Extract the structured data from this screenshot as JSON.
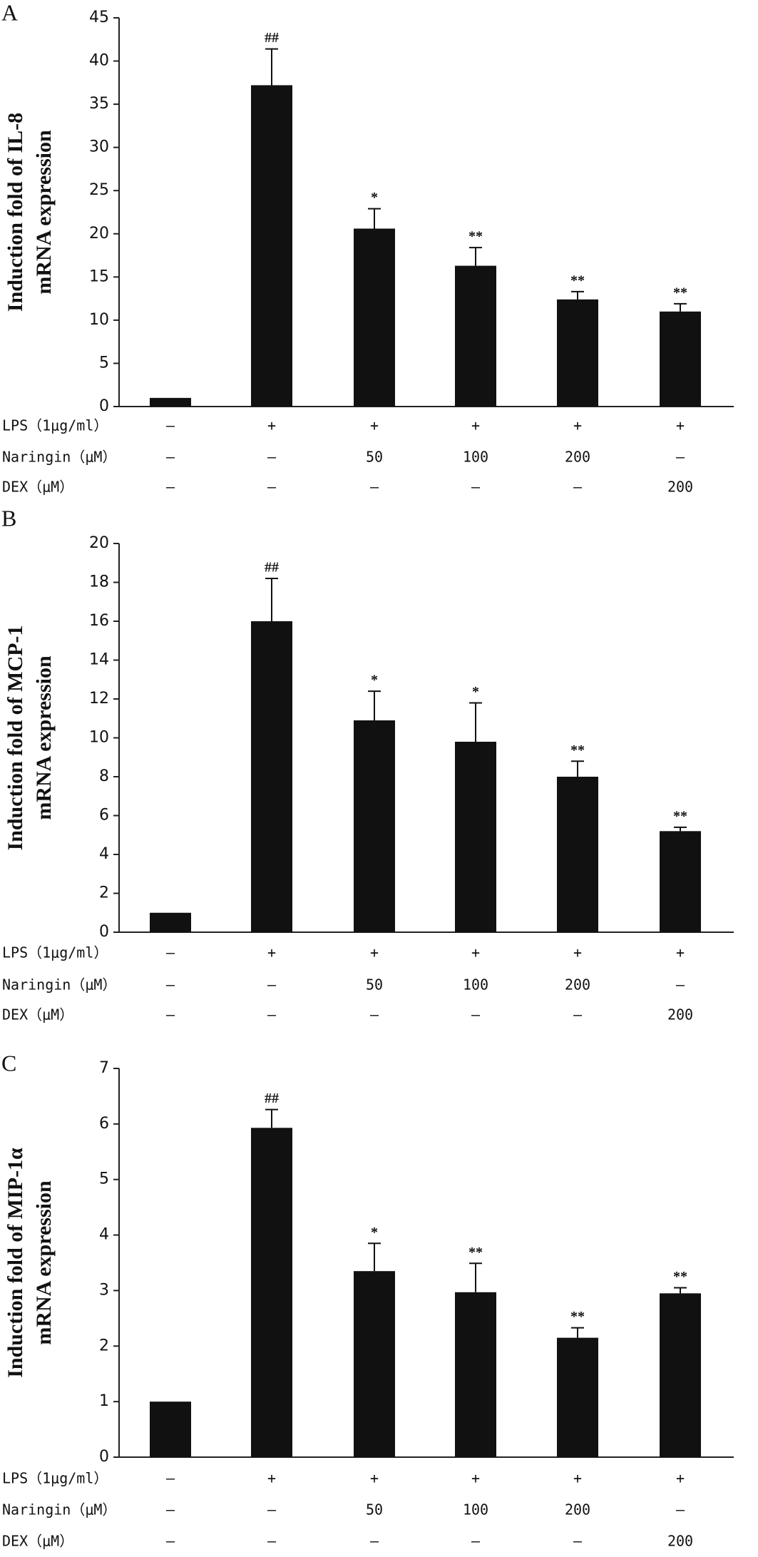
{
  "chart_data": [
    {
      "type": "bar",
      "panel": "A",
      "ylabel": [
        "Induction fold of IL-8",
        "mRNA expression"
      ],
      "ylim": [
        0,
        45
      ],
      "yticks": [
        0,
        5,
        10,
        15,
        20,
        25,
        30,
        35,
        40,
        45
      ],
      "color": "#111111",
      "values": [
        1,
        37.2,
        20.6,
        16.3,
        12.4,
        11.0
      ],
      "errors": [
        null,
        4.2,
        2.3,
        2.1,
        0.9,
        0.9
      ],
      "annotations": [
        null,
        "##",
        "*",
        "**",
        "**",
        "**"
      ],
      "conditions": [
        {
          "label": "LPS（1μg/ml）",
          "cells": [
            "–",
            "+",
            "+",
            "+",
            "+",
            "+"
          ]
        },
        {
          "label": "Naringin（μM）",
          "cells": [
            "–",
            "–",
            "50",
            "100",
            "200",
            "–"
          ]
        },
        {
          "label": "DEX（μM）",
          "cells": [
            "–",
            "–",
            "–",
            "–",
            "–",
            "200"
          ]
        }
      ]
    },
    {
      "type": "bar",
      "panel": "B",
      "ylabel": [
        "Induction fold of MCP-1",
        "mRNA expression"
      ],
      "ylim": [
        0,
        20
      ],
      "yticks": [
        0,
        2,
        4,
        6,
        8,
        10,
        12,
        14,
        16,
        18,
        20
      ],
      "color": "#111111",
      "values": [
        1,
        16.0,
        10.9,
        9.8,
        8.0,
        5.2
      ],
      "errors": [
        null,
        2.2,
        1.5,
        2.0,
        0.8,
        0.2
      ],
      "annotations": [
        null,
        "##",
        "*",
        "*",
        "**",
        "**"
      ],
      "conditions": [
        {
          "label": "LPS（1μg/ml）",
          "cells": [
            "–",
            "+",
            "+",
            "+",
            "+",
            "+"
          ]
        },
        {
          "label": "Naringin（μM）",
          "cells": [
            "–",
            "–",
            "50",
            "100",
            "200",
            "–"
          ]
        },
        {
          "label": "DEX（μM）",
          "cells": [
            "–",
            "–",
            "–",
            "–",
            "–",
            "200"
          ]
        }
      ]
    },
    {
      "type": "bar",
      "panel": "C",
      "ylabel": [
        "Induction fold of MIP-1α",
        "mRNA expression"
      ],
      "ylim": [
        0,
        7
      ],
      "yticks": [
        0,
        1,
        2,
        3,
        4,
        5,
        6,
        7
      ],
      "color": "#111111",
      "values": [
        1,
        5.93,
        3.35,
        2.97,
        2.15,
        2.95
      ],
      "errors": [
        null,
        0.33,
        0.5,
        0.52,
        0.18,
        0.1
      ],
      "annotations": [
        null,
        "##",
        "*",
        "**",
        "**",
        "**"
      ],
      "conditions": [
        {
          "label": "LPS（1μg/ml）",
          "cells": [
            "–",
            "+",
            "+",
            "+",
            "+",
            "+"
          ]
        },
        {
          "label": "Naringin（μM）",
          "cells": [
            "–",
            "–",
            "50",
            "100",
            "200",
            "–"
          ]
        },
        {
          "label": "DEX（μM）",
          "cells": [
            "–",
            "–",
            "–",
            "–",
            "–",
            "200"
          ]
        }
      ]
    }
  ]
}
